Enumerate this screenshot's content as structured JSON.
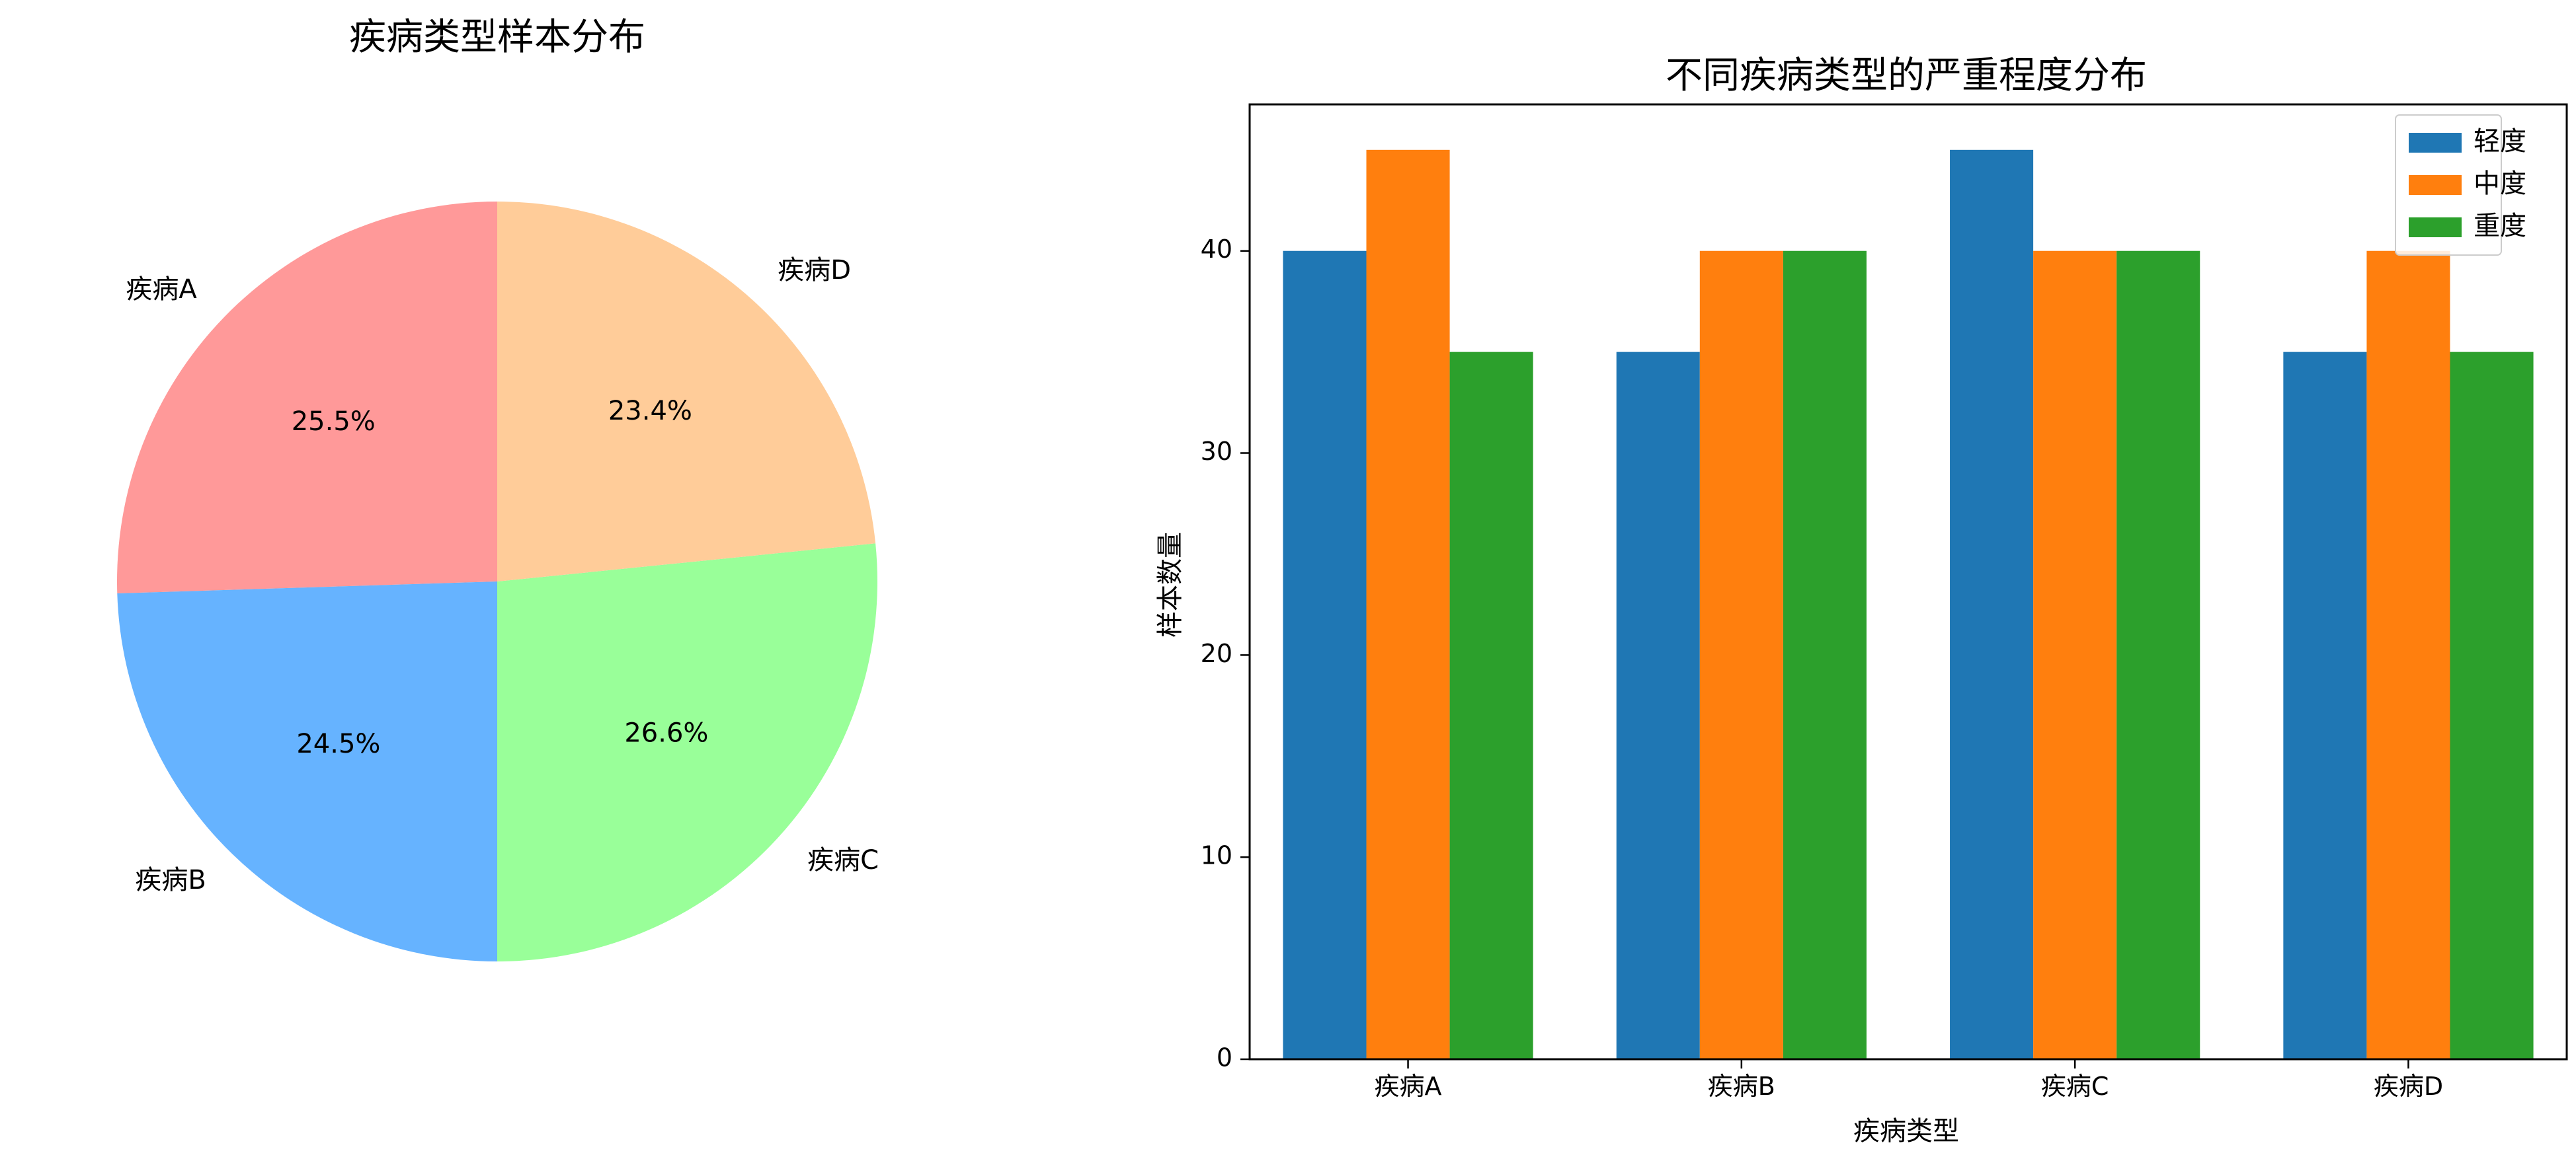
{
  "chart_data": [
    {
      "type": "pie",
      "title": "疾病类型样本分布",
      "labels": [
        "疾病A",
        "疾病B",
        "疾病C",
        "疾病D"
      ],
      "values": [
        25.5,
        24.5,
        26.6,
        23.4
      ],
      "percent_labels": [
        "25.5%",
        "24.5%",
        "26.6%",
        "23.4%"
      ],
      "colors": [
        "#ff9999",
        "#66b3ff",
        "#99ff99",
        "#ffcc99"
      ],
      "start_angle_deg": 90,
      "direction": "counterclockwise"
    },
    {
      "type": "bar",
      "title": "不同疾病类型的严重程度分布",
      "xlabel": "疾病类型",
      "ylabel": "样本数量",
      "categories": [
        "疾病A",
        "疾病B",
        "疾病C",
        "疾病D"
      ],
      "series": [
        {
          "name": "轻度",
          "color": "#1f77b4",
          "values": [
            40,
            35,
            45,
            35
          ]
        },
        {
          "name": "中度",
          "color": "#ff7f0e",
          "values": [
            45,
            40,
            40,
            40
          ]
        },
        {
          "name": "重度",
          "color": "#2ca02c",
          "values": [
            35,
            40,
            40,
            35
          ]
        }
      ],
      "ylim": [
        0,
        47.25
      ],
      "yticks": [
        0,
        10,
        20,
        30,
        40
      ],
      "legend": "top-right",
      "grid": false
    }
  ]
}
